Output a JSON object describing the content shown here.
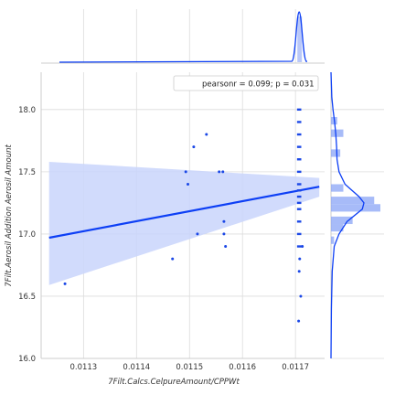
{
  "chart_data": {
    "type": "scatter",
    "title": "",
    "xlabel": "7Filt.Calcs.CelpureAmount/CPPWt",
    "ylabel": "7Filt.Aerosil Addition Aerosil Amount",
    "xlim": [
      0.01122,
      0.011755
    ],
    "ylim": [
      16.0,
      18.3
    ],
    "xticks": [
      "0.0113",
      "0.0114",
      "0.0115",
      "0.0116",
      "0.0117"
    ],
    "xtick_values": [
      0.0113,
      0.0114,
      0.0115,
      0.0116,
      0.0117
    ],
    "yticks": [
      "16.0",
      "16.5",
      "17.0",
      "17.5",
      "18.0"
    ],
    "ytick_values": [
      16.0,
      16.5,
      17.0,
      17.5,
      18.0
    ],
    "grid": true,
    "legend_text": "pearsonr = 0.099; p = 0.031",
    "legend_position": "top-right",
    "colors": {
      "points": "#1a47e6",
      "line": "#0d3ff5",
      "band": "#c9d5fb",
      "hist": "#8aa4f5",
      "grid": "#dcdcdc"
    },
    "points": [
      [
        0.011265,
        16.6
      ],
      [
        0.011468,
        16.8
      ],
      [
        0.011493,
        17.5
      ],
      [
        0.011497,
        17.4
      ],
      [
        0.011508,
        17.7
      ],
      [
        0.011515,
        17.0
      ],
      [
        0.011532,
        17.8
      ],
      [
        0.011556,
        17.5
      ],
      [
        0.011563,
        17.5
      ],
      [
        0.011565,
        17.1
      ],
      [
        0.011565,
        17.0
      ],
      [
        0.011568,
        16.9
      ],
      [
        0.011706,
        16.3
      ],
      [
        0.011707,
        16.7
      ],
      [
        0.01171,
        16.5
      ],
      [
        0.011708,
        16.8
      ],
      [
        0.011713,
        16.9
      ]
    ],
    "stack_x_range": [
      0.011703,
      0.011711
    ],
    "stack_y_values": [
      18.0,
      17.9,
      17.8,
      17.7,
      17.6,
      17.5,
      17.4,
      17.35,
      17.3,
      17.25,
      17.2,
      17.1,
      17.0,
      16.9
    ],
    "regression": {
      "x": [
        0.011235,
        0.011745
      ],
      "y": [
        16.97,
        17.38
      ],
      "ci_lower": [
        16.59,
        17.3
      ],
      "ci_upper": [
        17.58,
        17.45
      ]
    },
    "marginal_x_kde_peak": 0.011707,
    "marginal_y_hist": [
      {
        "y0": 16.92,
        "y1": 16.98,
        "count": 1
      },
      {
        "y0": 17.02,
        "y1": 17.08,
        "count": 4
      },
      {
        "y0": 17.08,
        "y1": 17.14,
        "count": 7
      },
      {
        "y0": 17.18,
        "y1": 17.24,
        "count": 16
      },
      {
        "y0": 17.24,
        "y1": 17.3,
        "count": 14
      },
      {
        "y0": 17.34,
        "y1": 17.4,
        "count": 4
      },
      {
        "y0": 17.62,
        "y1": 17.68,
        "count": 3
      },
      {
        "y0": 17.78,
        "y1": 17.84,
        "count": 4
      },
      {
        "y0": 17.88,
        "y1": 17.94,
        "count": 2
      }
    ],
    "marginal_y_kde": [
      [
        16.0,
        0.0
      ],
      [
        16.4,
        0.01
      ],
      [
        16.7,
        0.03
      ],
      [
        16.9,
        0.08
      ],
      [
        17.0,
        0.2
      ],
      [
        17.1,
        0.4
      ],
      [
        17.2,
        0.78
      ],
      [
        17.25,
        0.82
      ],
      [
        17.3,
        0.7
      ],
      [
        17.4,
        0.35
      ],
      [
        17.5,
        0.2
      ],
      [
        17.6,
        0.15
      ],
      [
        17.7,
        0.14
      ],
      [
        17.8,
        0.12
      ],
      [
        17.9,
        0.09
      ],
      [
        18.0,
        0.05
      ],
      [
        18.1,
        0.02
      ],
      [
        18.3,
        0.0
      ]
    ]
  }
}
